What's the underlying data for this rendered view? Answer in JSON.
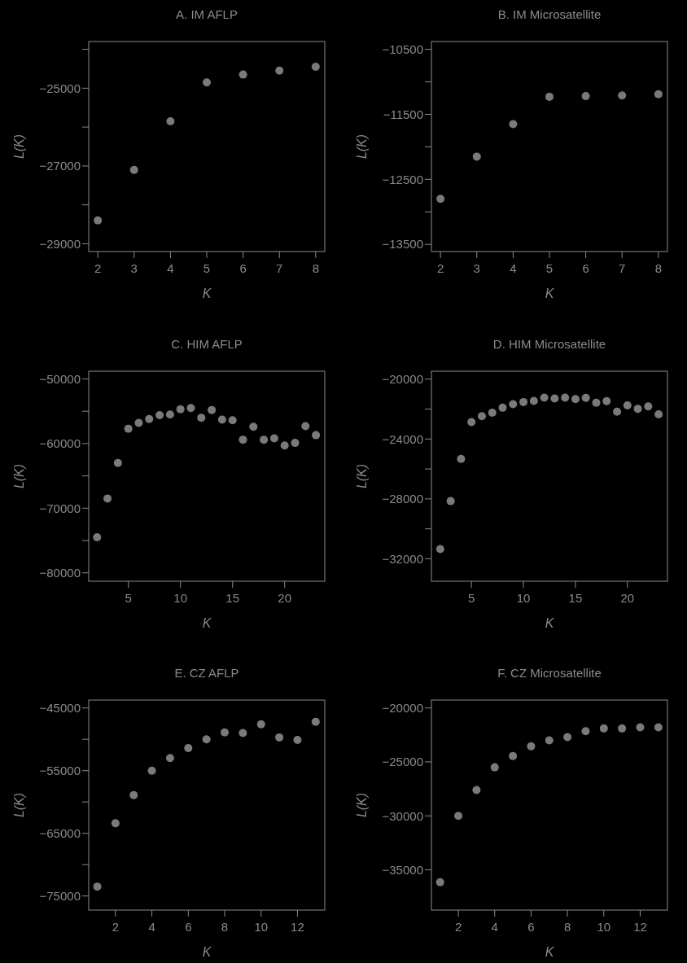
{
  "chart_data": [
    {
      "type": "scatter",
      "title": "A. IM AFLP",
      "xlabel": "K",
      "ylabel": "L(K)",
      "marker": "circle",
      "xlim": [
        1.75,
        8.25
      ],
      "xticks": [
        2,
        3,
        4,
        5,
        6,
        7,
        8
      ],
      "ylim": [
        -29200,
        -23800
      ],
      "yticks": [
        {
          "value": -24000,
          "label": null
        },
        {
          "value": -25000,
          "label": "−25000"
        },
        {
          "value": -26000,
          "label": null
        },
        {
          "value": -27000,
          "label": "−27000"
        },
        {
          "value": -28000,
          "label": null
        },
        {
          "value": -29000,
          "label": "−29000"
        }
      ],
      "series": [
        {
          "color": "#7a7a7a",
          "x": [
            2,
            3,
            4,
            5,
            6,
            7,
            8
          ],
          "values": [
            -28400,
            -27100,
            -25850,
            -24850,
            -24650,
            -24550,
            -24450
          ]
        }
      ]
    },
    {
      "type": "scatter",
      "title": "B. IM Microsatellite",
      "xlabel": "K",
      "ylabel": "L(K)",
      "marker": "circle",
      "xlim": [
        1.75,
        8.25
      ],
      "xticks": [
        2,
        3,
        4,
        5,
        6,
        7,
        8
      ],
      "ylim": [
        -13610,
        -10380
      ],
      "yticks": [
        {
          "value": -10500,
          "label": "−10500"
        },
        {
          "value": -11000,
          "label": null
        },
        {
          "value": -11500,
          "label": "−11500"
        },
        {
          "value": -12000,
          "label": null
        },
        {
          "value": -12500,
          "label": "−12500"
        },
        {
          "value": -13000,
          "label": null
        },
        {
          "value": -13500,
          "label": "−13500"
        }
      ],
      "series": [
        {
          "color": "#7a7a7a",
          "x": [
            2,
            3,
            4,
            5,
            6,
            7,
            8
          ],
          "values": [
            -12800,
            -12150,
            -11650,
            -11230,
            -11220,
            -11210,
            -11190
          ]
        }
      ]
    },
    {
      "type": "scatter",
      "title": "C. HIM AFLP",
      "xlabel": "K",
      "ylabel": "L(K)",
      "marker": "circle",
      "xlim": [
        1.2,
        23.85
      ],
      "xticks": [
        5,
        10,
        15,
        20
      ],
      "ylim": [
        -81300,
        -48800
      ],
      "yticks": [
        {
          "value": -50000,
          "label": "−50000"
        },
        {
          "value": -55000,
          "label": null
        },
        {
          "value": -60000,
          "label": "−60000"
        },
        {
          "value": -65000,
          "label": null
        },
        {
          "value": -70000,
          "label": "−70000"
        },
        {
          "value": -75000,
          "label": null
        },
        {
          "value": -80000,
          "label": "−80000"
        }
      ],
      "series": [
        {
          "color": "#7a7a7a",
          "x": [
            2,
            3,
            4,
            5,
            6,
            7,
            8,
            9,
            10,
            11,
            12,
            13,
            14,
            15,
            16,
            17,
            18,
            19,
            20,
            21,
            22,
            23
          ],
          "values": [
            -74500,
            -68500,
            -63000,
            -57700,
            -56800,
            -56200,
            -55600,
            -55500,
            -54700,
            -54500,
            -56000,
            -54800,
            -56300,
            -56400,
            -59400,
            -57400,
            -59400,
            -59200,
            -60300,
            -59900,
            -57300,
            -58700
          ]
        }
      ]
    },
    {
      "type": "scatter",
      "title": "D. HIM Microsatellite",
      "xlabel": "K",
      "ylabel": "L(K)",
      "marker": "circle",
      "xlim": [
        1.15,
        23.85
      ],
      "xticks": [
        5,
        10,
        15,
        20
      ],
      "ylim": [
        -33500,
        -19470
      ],
      "yticks": [
        {
          "value": -20000,
          "label": "−20000"
        },
        {
          "value": -22000,
          "label": null
        },
        {
          "value": -24000,
          "label": "−24000"
        },
        {
          "value": -26000,
          "label": null
        },
        {
          "value": -28000,
          "label": "−28000"
        },
        {
          "value": -30000,
          "label": null
        },
        {
          "value": -32000,
          "label": "−32000"
        }
      ],
      "series": [
        {
          "color": "#7a7a7a",
          "x": [
            2,
            3,
            4,
            5,
            6,
            7,
            8,
            9,
            10,
            11,
            12,
            13,
            14,
            15,
            16,
            17,
            18,
            19,
            20,
            21,
            22,
            23
          ],
          "values": [
            -31350,
            -28150,
            -25330,
            -22870,
            -22470,
            -22240,
            -21910,
            -21670,
            -21530,
            -21450,
            -21240,
            -21290,
            -21240,
            -21330,
            -21250,
            -21580,
            -21470,
            -22180,
            -21750,
            -21980,
            -21820,
            -22350
          ]
        }
      ]
    },
    {
      "type": "scatter",
      "title": "E. CZ AFLP",
      "xlabel": "K",
      "ylabel": "L(K)",
      "marker": "circle",
      "xlim": [
        0.53,
        13.5
      ],
      "xticks": [
        2,
        4,
        6,
        8,
        10,
        12
      ],
      "ylim": [
        -77250,
        -43740
      ],
      "yticks": [
        {
          "value": -45000,
          "label": "−45000"
        },
        {
          "value": -50000,
          "label": null
        },
        {
          "value": -55000,
          "label": "−55000"
        },
        {
          "value": -60000,
          "label": null
        },
        {
          "value": -65000,
          "label": "−65000"
        },
        {
          "value": -70000,
          "label": null
        },
        {
          "value": -75000,
          "label": "−75000"
        }
      ],
      "series": [
        {
          "color": "#7a7a7a",
          "x": [
            1,
            2,
            3,
            4,
            5,
            6,
            7,
            8,
            9,
            10,
            11,
            12,
            13
          ],
          "values": [
            -73500,
            -63400,
            -58900,
            -55000,
            -53000,
            -51400,
            -50000,
            -48900,
            -49000,
            -47600,
            -49700,
            -50100,
            -47200
          ]
        }
      ]
    },
    {
      "type": "scatter",
      "title": "F. CZ Microsatellite",
      "xlabel": "K",
      "ylabel": "L(K)",
      "marker": "circle",
      "xlim": [
        0.52,
        13.5
      ],
      "xticks": [
        2,
        4,
        6,
        8,
        10,
        12
      ],
      "ylim": [
        -38730,
        -19270
      ],
      "yticks": [
        {
          "value": -20000,
          "label": "−20000"
        },
        {
          "value": -25000,
          "label": "−25000"
        },
        {
          "value": -30000,
          "label": "−30000"
        },
        {
          "value": -35000,
          "label": "−35000"
        }
      ],
      "series": [
        {
          "color": "#7a7a7a",
          "x": [
            1,
            2,
            3,
            4,
            5,
            6,
            7,
            8,
            9,
            10,
            11,
            12,
            13
          ],
          "values": [
            -36150,
            -30000,
            -27600,
            -25500,
            -24450,
            -23550,
            -23000,
            -22700,
            -22150,
            -21900,
            -21900,
            -21800,
            -21800
          ]
        }
      ]
    }
  ]
}
